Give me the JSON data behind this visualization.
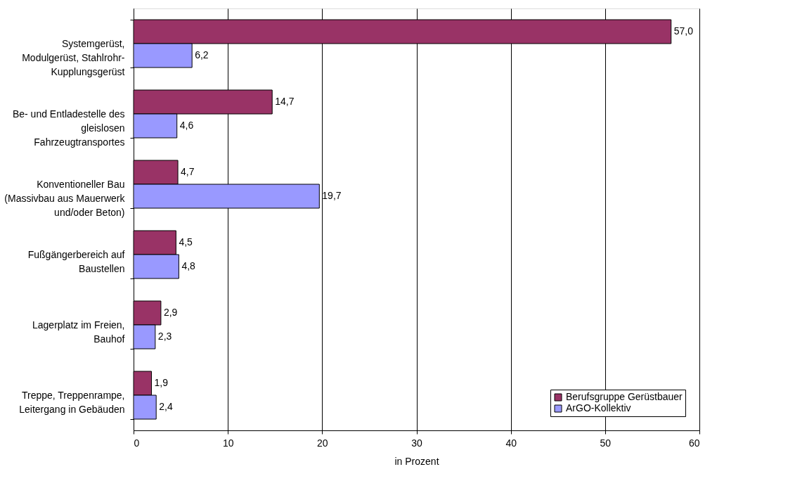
{
  "chart_data": {
    "type": "bar",
    "orientation": "horizontal",
    "xlabel": "in Prozent",
    "categories": [
      "Systemgerüst,\nModulgerüst, Stahlrohr-\nKupplungsgerüst",
      "Be- und Entladestelle des\ngleislosen\nFahrzeugtransportes",
      "Konventioneller Bau\n(Massivbau aus Mauerwerk\nund/oder Beton)",
      "Fußgängerbereich auf\nBaustellen",
      "Lagerplatz im Freien,\nBauhof",
      "Treppe, Treppenrampe,\nLeitergang in Gebäuden"
    ],
    "series": [
      {
        "name": "Berufsgruppe Gerüstbauer",
        "color": "#993366",
        "values": [
          57.0,
          14.7,
          4.7,
          4.5,
          2.9,
          1.9
        ],
        "value_labels": [
          "57,0",
          "14,7",
          "4,7",
          "4,5",
          "2,9",
          "1,9"
        ]
      },
      {
        "name": "ArGO-Kollektiv",
        "color": "#9999ff",
        "values": [
          6.2,
          4.6,
          19.7,
          4.8,
          2.3,
          2.4
        ],
        "value_labels": [
          "6,2",
          "4,6",
          "19,7",
          "4,8",
          "2,3",
          "2,4"
        ]
      }
    ],
    "xlim": [
      0,
      60
    ],
    "xticks": [
      0,
      10,
      20,
      30,
      40,
      50,
      60
    ],
    "grid": "x",
    "legend": "bottom right"
  }
}
